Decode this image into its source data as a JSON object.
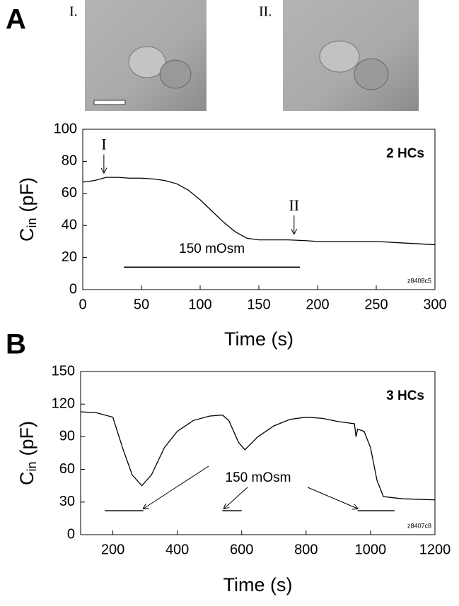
{
  "panels": [
    "A",
    "B"
  ],
  "images": [
    {
      "label": "I."
    },
    {
      "label": "II."
    }
  ],
  "chart_data": [
    {
      "type": "line",
      "ylabel": "C",
      "ylabel_sub": "in",
      "ylabel_unit": "(pF)",
      "xlabel": "Time (s)",
      "corner_label": "2 HCs",
      "file_label": "z8408c5",
      "color": "#000000",
      "xlim": [
        0,
        300
      ],
      "xticks": [
        0,
        50,
        100,
        150,
        200,
        250,
        300
      ],
      "ylim": [
        0,
        100
      ],
      "yticks": [
        0,
        20,
        40,
        60,
        80,
        100
      ],
      "x": [
        0,
        10,
        20,
        30,
        40,
        50,
        60,
        70,
        80,
        90,
        100,
        110,
        120,
        130,
        140,
        150,
        160,
        175,
        190,
        200,
        225,
        250,
        275,
        300
      ],
      "values": [
        67,
        68,
        70,
        70,
        69.5,
        69.5,
        69,
        68,
        66,
        62,
        56,
        49,
        42,
        36,
        32,
        31,
        31,
        31,
        30.5,
        30,
        30,
        30,
        29,
        28
      ],
      "arrow_labels": [
        {
          "text": "I",
          "x": 18,
          "y": 72
        },
        {
          "text": "II",
          "x": 180,
          "y": 34
        }
      ],
      "bars": [
        {
          "x": [
            35,
            185
          ],
          "y": 14
        }
      ],
      "bar_label": "150 mOsm"
    },
    {
      "type": "line",
      "ylabel": "C",
      "ylabel_sub": "in",
      "ylabel_unit": "(pF)",
      "xlabel": "Time (s)",
      "corner_label": "3 HCs",
      "file_label": "z8407c8",
      "color": "#000000",
      "xlim": [
        100,
        1200
      ],
      "xticks": [
        200,
        400,
        600,
        800,
        1000,
        1200
      ],
      "ylim": [
        0,
        150
      ],
      "yticks": [
        0,
        30,
        60,
        90,
        120,
        150
      ],
      "x": [
        100,
        150,
        200,
        230,
        260,
        290,
        320,
        360,
        400,
        450,
        500,
        540,
        560,
        590,
        610,
        650,
        700,
        750,
        800,
        850,
        900,
        950,
        955,
        960,
        980,
        1000,
        1020,
        1040,
        1100,
        1200
      ],
      "values": [
        113,
        112,
        108,
        80,
        55,
        45,
        55,
        80,
        95,
        105,
        109,
        110,
        105,
        85,
        78,
        90,
        100,
        106,
        108,
        107,
        104,
        102,
        90,
        97,
        95,
        80,
        50,
        35,
        33,
        32
      ],
      "bars": [
        {
          "x": [
            175,
            295
          ],
          "y": 22
        },
        {
          "x": [
            540,
            600
          ],
          "y": 22
        },
        {
          "x": [
            960,
            1075
          ],
          "y": 22
        }
      ],
      "pointer_label": "150 mOsm",
      "pointer_targets": [
        [
          295,
          22
        ],
        [
          545,
          22
        ],
        [
          960,
          22
        ]
      ]
    }
  ]
}
